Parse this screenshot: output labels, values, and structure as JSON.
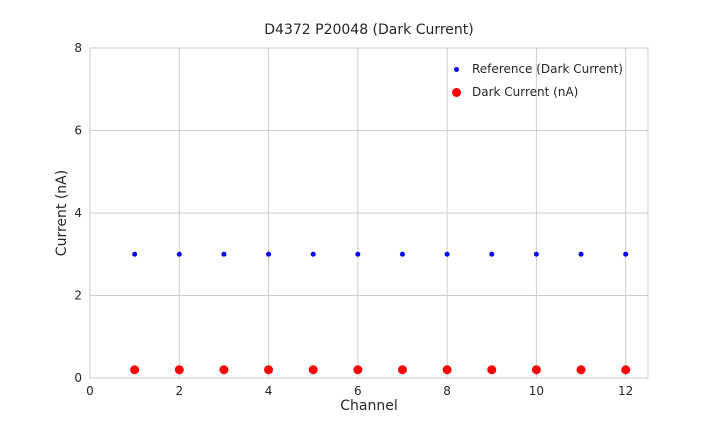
{
  "chart_data": {
    "type": "scatter",
    "title": "D4372 P20048 (Dark Current)",
    "xlabel": "Channel",
    "ylabel": "Current (nA)",
    "xlim": [
      0,
      12.5
    ],
    "ylim": [
      0,
      8
    ],
    "xticks": [
      0,
      2,
      4,
      6,
      8,
      10,
      12
    ],
    "yticks": [
      0,
      2,
      4,
      6,
      8
    ],
    "grid": true,
    "legend_position": "upper right",
    "x": [
      1,
      2,
      3,
      4,
      5,
      6,
      7,
      8,
      9,
      10,
      11,
      12
    ],
    "series": [
      {
        "name": "Reference (Dark Current)",
        "color": "#0000ff",
        "marker_radius": 2.5,
        "values": [
          3,
          3,
          3,
          3,
          3,
          3,
          3,
          3,
          3,
          3,
          3,
          3
        ]
      },
      {
        "name": "Dark Current (nA)",
        "color": "#ff0000",
        "marker_radius": 4.5,
        "values": [
          0.2,
          0.2,
          0.2,
          0.2,
          0.2,
          0.2,
          0.2,
          0.2,
          0.2,
          0.2,
          0.2,
          0.2
        ]
      }
    ],
    "colors": {
      "grid": "#cccccc",
      "axis_text": "#262626",
      "background": "#ffffff"
    }
  }
}
